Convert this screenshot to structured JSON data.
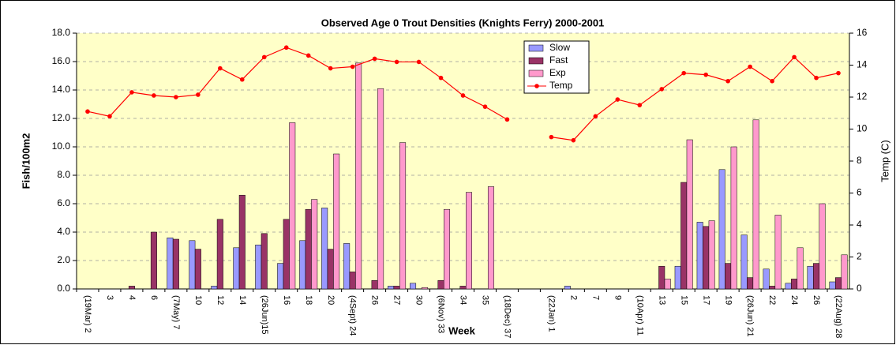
{
  "chart_data": {
    "type": "bar",
    "title": "Observed Age 0 Trout Densities (Knights Ferry) 2000-2001",
    "x_label": "Week",
    "y_label": "Fish/100m2",
    "y2_label": "Temp (C)",
    "categories": [
      "(19Mar) 2",
      "3",
      "4",
      "6",
      "(7May) 7",
      "10",
      "12",
      "14",
      "(26Jun)15",
      "16",
      "18",
      "20",
      "(4Sept) 24",
      "26",
      "27",
      "30",
      "(6Nov) 33",
      "34",
      "35",
      "(18Dec) 37",
      null,
      "(22Jan) 1",
      "2",
      "7",
      "9",
      "(10Apr) 11",
      "13",
      "15",
      "17",
      "19",
      "(26Jun) 21",
      "22",
      "24",
      "26",
      "(22Aug) 28"
    ],
    "series": [
      {
        "name": "Slow",
        "color": "#9999ff",
        "values": [
          0,
          0,
          0,
          0,
          3.6,
          3.4,
          0.2,
          2.9,
          3.1,
          1.8,
          3.4,
          5.7,
          3.2,
          0,
          0.2,
          0.4,
          0,
          0,
          0,
          0,
          null,
          0,
          0.2,
          0,
          0,
          0,
          0,
          1.6,
          4.7,
          8.4,
          3.8,
          1.4,
          0.4,
          1.6,
          0.5
        ]
      },
      {
        "name": "Fast",
        "color": "#993366",
        "values": [
          0,
          0,
          0.2,
          4.0,
          3.5,
          2.8,
          4.9,
          6.6,
          3.9,
          4.9,
          5.6,
          2.8,
          1.2,
          0.6,
          0.2,
          0,
          0.6,
          0.2,
          0,
          0,
          null,
          0,
          0,
          0,
          0,
          0,
          1.6,
          7.5,
          4.4,
          1.8,
          0.8,
          0.2,
          0.7,
          1.8,
          0.8
        ]
      },
      {
        "name": "Exp",
        "color": "#ff99cc",
        "values": [
          0,
          0,
          0,
          0,
          0,
          0,
          0,
          0,
          0,
          11.7,
          6.3,
          9.5,
          15.9,
          14.1,
          10.3,
          0.1,
          5.6,
          6.8,
          7.2,
          0,
          null,
          0,
          0,
          0,
          0,
          0,
          0.7,
          10.5,
          4.8,
          10.0,
          11.9,
          5.2,
          2.9,
          6.0,
          2.4
        ]
      },
      {
        "name": "Temp",
        "color": "#ff0000",
        "axis": "y2",
        "type": "line",
        "values": [
          11.1,
          10.8,
          12.3,
          12.1,
          12.0,
          12.15,
          13.8,
          13.1,
          14.5,
          15.1,
          14.6,
          13.8,
          13.9,
          14.4,
          14.2,
          14.2,
          13.2,
          12.1,
          11.4,
          10.6,
          null,
          9.5,
          9.3,
          10.8,
          11.85,
          11.5,
          12.5,
          13.5,
          13.4,
          13.0,
          13.9,
          13.0,
          14.5,
          13.2,
          13.5
        ]
      }
    ],
    "ylim": [
      0,
      18
    ],
    "yticks": [
      {
        "value": 0,
        "label": "0.0"
      },
      {
        "value": 2,
        "label": "2.0"
      },
      {
        "value": 4,
        "label": "4.0"
      },
      {
        "value": 6,
        "label": "6.0"
      },
      {
        "value": 8,
        "label": "8.0"
      },
      {
        "value": 10,
        "label": "10.0"
      },
      {
        "value": 12,
        "label": "12.0"
      },
      {
        "value": 14,
        "label": "14.0"
      },
      {
        "value": 16,
        "label": "16.0"
      },
      {
        "value": 18,
        "label": "18.0"
      }
    ],
    "y2lim": [
      0,
      16
    ],
    "y2ticks": [
      0,
      2,
      4,
      6,
      8,
      10,
      12,
      14,
      16
    ],
    "grid": true
  }
}
